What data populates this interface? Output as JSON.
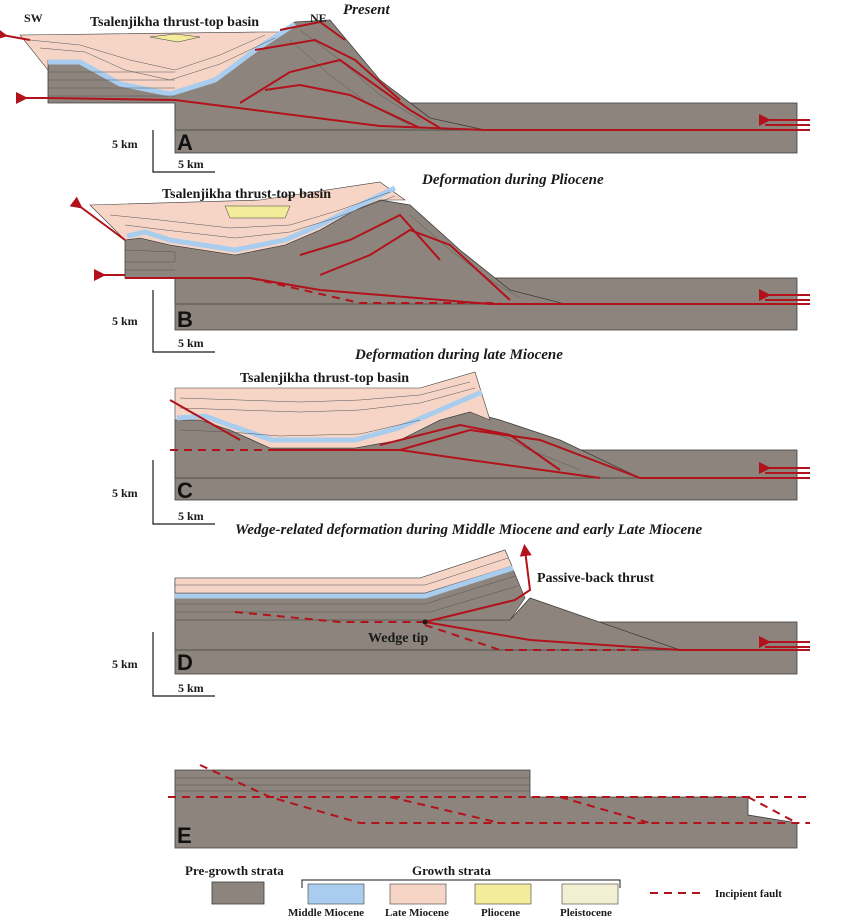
{
  "panels": {
    "A": {
      "letter": "A",
      "title": "Present",
      "basin": "Tsalenjikha thrust-top basin",
      "sw": "SW",
      "ne": "NE",
      "v_scale": "5 km",
      "h_scale": "5 km"
    },
    "B": {
      "letter": "B",
      "title": "Deformation during Pliocene",
      "basin": "Tsalenjikha thrust-top basin",
      "v_scale": "5 km",
      "h_scale": "5 km"
    },
    "C": {
      "letter": "C",
      "title": "Deformation during late Miocene",
      "basin": "Tsalenjikha thrust-top basin",
      "v_scale": "5 km",
      "h_scale": "5 km"
    },
    "D": {
      "letter": "D",
      "title": "Wedge-related deformation during Middle Miocene and early Late Miocene",
      "passive": "Passive-back thrust",
      "wedge_tip": "Wedge tip",
      "v_scale": "5 km",
      "h_scale": "5 km"
    },
    "E": {
      "letter": "E"
    }
  },
  "legend": {
    "pre_growth": "Pre-growth strata",
    "growth": "Growth strata",
    "items": [
      {
        "label": "Middle Miocene",
        "color": "#a9cdee"
      },
      {
        "label": "Late Miocene",
        "color": "#f6d5c7"
      },
      {
        "label": "Pliocene",
        "color": "#f2ec9b"
      },
      {
        "label": "Pleistocene",
        "color": "#f3efd2"
      }
    ],
    "pre_color": "#8d857d",
    "incipient": "Incipient fault"
  }
}
